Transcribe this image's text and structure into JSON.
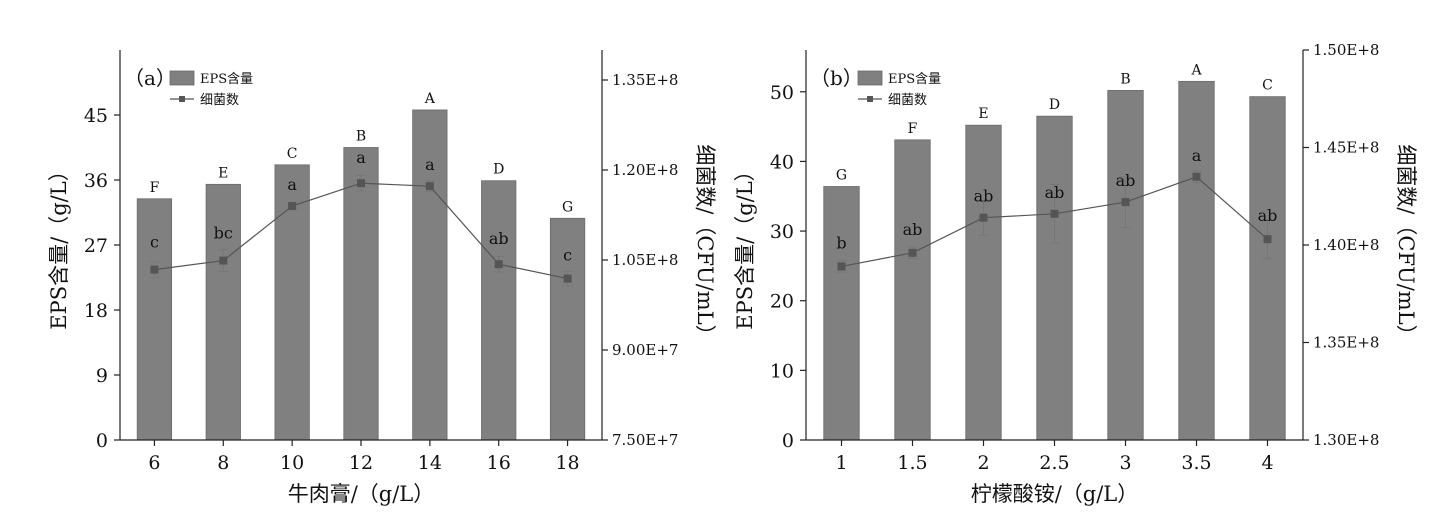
{
  "colors": {
    "bar": "#808080",
    "line": "#555555",
    "axis": "#222222"
  },
  "chart_data": [
    {
      "type": "bar",
      "panel_label": "（a）",
      "legend": {
        "bar": "EPS含量",
        "line": "细菌数",
        "placement": "top-left"
      },
      "xlabel": "牛肉膏/（g/L）",
      "ylabel": "EPS含量/（g/L）",
      "y2label": "细菌数/（CFU/mL）",
      "categories": [
        "6",
        "8",
        "10",
        "12",
        "14",
        "16",
        "18"
      ],
      "ylim": [
        0,
        54
      ],
      "yticks": [
        0,
        9,
        18,
        27,
        36,
        45
      ],
      "ytick_labels": [
        "0",
        "9",
        "18",
        "27",
        "36",
        "45"
      ],
      "y2lim": [
        75000000,
        140000000
      ],
      "y2ticks": [
        75000000,
        90000000,
        105000000,
        120000000,
        135000000
      ],
      "y2tick_labels": [
        "7.50E+7",
        "9.00E+7",
        "1.05E+8",
        "1.20E+8",
        "1.35E+8"
      ],
      "series": [
        {
          "name": "EPS含量",
          "type": "bar",
          "values": [
            33.4,
            35.4,
            38.1,
            40.5,
            45.7,
            35.9,
            30.7
          ],
          "significance": [
            "F",
            "E",
            "C",
            "B",
            "A",
            "D",
            "G"
          ]
        },
        {
          "name": "细菌数",
          "type": "line",
          "axis": "right",
          "values": [
            103400000,
            104900000,
            114000000,
            117800000,
            117300000,
            104300000,
            101900000
          ],
          "errors": [
            1300000,
            1800000,
            600000,
            1300000,
            900000,
            1300000,
            1200000
          ],
          "significance": [
            "c",
            "bc",
            "a",
            "a",
            "a",
            "ab",
            "c"
          ]
        }
      ]
    },
    {
      "type": "bar",
      "panel_label": "（b）",
      "legend": {
        "bar": "EPS含量",
        "line": "细菌数",
        "placement": "top-left"
      },
      "xlabel": "柠檬酸铵/（g/L）",
      "ylabel": "EPS含量/（g/L）",
      "y2label": "细菌数/（CFU/mL）",
      "categories": [
        "1",
        "1.5",
        "2",
        "2.5",
        "3",
        "3.5",
        "4"
      ],
      "ylim": [
        0,
        56
      ],
      "yticks": [
        0,
        10,
        20,
        30,
        40,
        50
      ],
      "ytick_labels": [
        "0",
        "10",
        "20",
        "30",
        "40",
        "50"
      ],
      "y2lim": [
        130000000,
        150000000
      ],
      "y2ticks": [
        130000000,
        135000000,
        140000000,
        145000000,
        150000000
      ],
      "y2tick_labels": [
        "1.30E+8",
        "1.35E+8",
        "1.40E+8",
        "1.45E+8",
        "1.50E+8"
      ],
      "series": [
        {
          "name": "EPS含量",
          "type": "bar",
          "values": [
            36.4,
            43.1,
            45.2,
            46.5,
            50.2,
            51.5,
            49.3
          ],
          "significance": [
            "G",
            "F",
            "E",
            "D",
            "B",
            "A",
            "C"
          ]
        },
        {
          "name": "细菌数",
          "type": "line",
          "axis": "right",
          "values": [
            138900000,
            139600000,
            141400000,
            141600000,
            142200000,
            143500000,
            140300000
          ],
          "errors": [
            300000,
            300000,
            900000,
            1500000,
            1300000,
            300000,
            1000000
          ],
          "significance": [
            "b",
            "ab",
            "ab",
            "ab",
            "ab",
            "a",
            "ab"
          ]
        }
      ]
    }
  ]
}
